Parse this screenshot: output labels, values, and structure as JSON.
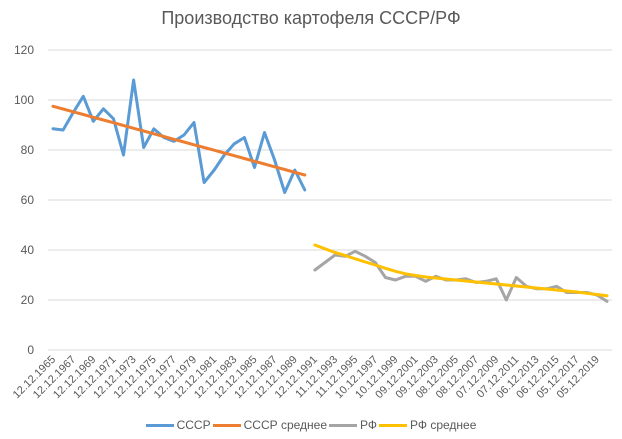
{
  "chart_data": {
    "type": "line",
    "title": "Производство картофеля СССР/РФ",
    "xlabel": "",
    "ylabel": "",
    "ylim": [
      0,
      120
    ],
    "yticks": [
      0,
      20,
      40,
      60,
      80,
      100,
      120
    ],
    "grid": true,
    "legend_position": "bottom",
    "x_tick_labels": [
      "12.12.1965",
      "12.12.1967",
      "12.12.1969",
      "12.12.1971",
      "12.12.1973",
      "12.12.1975",
      "12.12.1977",
      "12.12.1979",
      "12.12.1981",
      "12.12.1983",
      "12.12.1985",
      "12.12.1987",
      "12.12.1989",
      "12.12.1991",
      "11.12.1993",
      "11.12.1995",
      "10.12.1997",
      "10.12.1999",
      "09.12.2001",
      "09.12.2003",
      "08.12.2005",
      "08.12.2007",
      "07.12.2009",
      "07.12.2011",
      "06.12.2013",
      "06.12.2015",
      "05.12.2017",
      "05.12.2019"
    ],
    "x_years": [
      1965,
      1966,
      1967,
      1968,
      1969,
      1970,
      1971,
      1972,
      1973,
      1974,
      1975,
      1976,
      1977,
      1978,
      1979,
      1980,
      1981,
      1982,
      1983,
      1984,
      1985,
      1986,
      1987,
      1988,
      1989,
      1990,
      1991,
      1992,
      1993,
      1994,
      1995,
      1996,
      1997,
      1998,
      1999,
      2000,
      2001,
      2002,
      2003,
      2004,
      2005,
      2006,
      2007,
      2008,
      2009,
      2010,
      2011,
      2012,
      2013,
      2014,
      2015,
      2016,
      2017,
      2018,
      2019,
      2020
    ],
    "series": [
      {
        "name": "СССР",
        "color": "#5B9BD5",
        "start_index": 0,
        "values": [
          88.5,
          88,
          95,
          101.5,
          91.5,
          96.5,
          92.5,
          78,
          108,
          81,
          88.5,
          85,
          83.5,
          86,
          91,
          67,
          72,
          78,
          82.5,
          85,
          73,
          87,
          76,
          63,
          72,
          64
        ]
      },
      {
        "name": "СССР среднее",
        "color": "#ED7D31",
        "start_index": 0,
        "values": [
          97.5,
          96.4,
          95.3,
          94.2,
          93.1,
          92,
          90.9,
          89.8,
          88.7,
          87.6,
          86.5,
          85.4,
          84.3,
          83.2,
          82.1,
          81,
          79.9,
          78.8,
          77.7,
          76.6,
          75.5,
          74.4,
          73.3,
          72.2,
          71.1,
          70
        ]
      },
      {
        "name": "РФ",
        "color": "#A5A5A5",
        "start_index": 26,
        "values": [
          32,
          35,
          38,
          37.5,
          39.5,
          37.5,
          35,
          29,
          28,
          29.5,
          29.5,
          27.5,
          29.5,
          28,
          28,
          28.5,
          27,
          27.5,
          28.5,
          20,
          29,
          25.5,
          24.5,
          24.5,
          25.5,
          23,
          23,
          23,
          22,
          19.5
        ]
      },
      {
        "name": "РФ среднее",
        "color": "#FFC000",
        "start_index": 26,
        "values": [
          42,
          40.5,
          39,
          37.8,
          36.5,
          35.2,
          34,
          32.7,
          31.5,
          30.5,
          29.8,
          29.2,
          28.8,
          28.4,
          28,
          27.6,
          27.2,
          26.8,
          26.4,
          26,
          25.6,
          25.2,
          24.8,
          24.4,
          24,
          23.6,
          23.2,
          22.7,
          22.2,
          21.7
        ]
      }
    ]
  }
}
